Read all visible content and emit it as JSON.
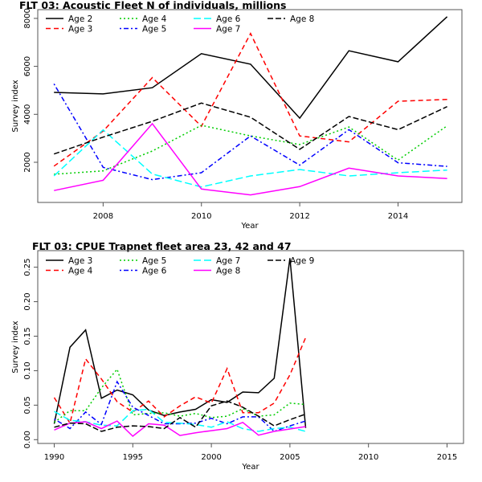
{
  "chart_data": [
    {
      "type": "line",
      "title": "FLT 03: Acoustic Fleet   N of individuals, millions",
      "xlabel": "Year",
      "ylabel": "Survey index",
      "xlim": [
        2006.67,
        2015.3
      ],
      "ylim": [
        325,
        8365
      ],
      "xticks": [
        2008,
        2010,
        2012,
        2014
      ],
      "xtick_labels": [
        "2008",
        "2010",
        "2012",
        "2014"
      ],
      "yticks": [
        2000,
        4000,
        6000,
        8000
      ],
      "ytick_labels": [
        "2000",
        "4000",
        "6000",
        "8000"
      ],
      "grid": false,
      "legend_position": "top-left",
      "legend_columns": 4,
      "x": [
        2007,
        2008,
        2009,
        2010,
        2011,
        2012,
        2013,
        2014,
        2015
      ],
      "series": [
        {
          "name": "Age 2",
          "color": "#000000",
          "style": "solid",
          "values": [
            4915,
            4850,
            5110,
            6530,
            6090,
            3840,
            6650,
            6190,
            8070
          ]
        },
        {
          "name": "Age 3",
          "color": "#ff0000",
          "style": "dashed",
          "values": [
            1840,
            3300,
            5530,
            3500,
            7370,
            3100,
            2850,
            4545,
            4620
          ]
        },
        {
          "name": "Age 4",
          "color": "#00cd00",
          "style": "dotted",
          "values": [
            1500,
            1640,
            2470,
            3540,
            3100,
            2740,
            3470,
            2090,
            3520
          ]
        },
        {
          "name": "Age 5",
          "color": "#0000ff",
          "style": "dotdash",
          "values": [
            5270,
            1790,
            1275,
            1565,
            3100,
            1880,
            3360,
            1980,
            1830
          ]
        },
        {
          "name": "Age 6",
          "color": "#00ffff",
          "style": "longdash",
          "values": [
            1430,
            3350,
            1510,
            970,
            1430,
            1700,
            1430,
            1565,
            1675
          ]
        },
        {
          "name": "Age 7",
          "color": "#ff00ff",
          "style": "solid",
          "values": [
            820,
            1250,
            3610,
            885,
            640,
            985,
            1755,
            1430,
            1320
          ]
        },
        {
          "name": "Age 8",
          "color": "#000000",
          "style": "twodash",
          "values": [
            2345,
            3050,
            3710,
            4470,
            3880,
            2540,
            3910,
            3360,
            4320
          ]
        }
      ]
    },
    {
      "type": "line",
      "title": "FLT 03: CPUE Trapnet fleet area 23, 42 and 47",
      "xlabel": "Year",
      "ylabel": "Survey index",
      "xlim": [
        1988.95,
        2016.05
      ],
      "ylim": [
        -0.0055,
        0.274
      ],
      "xticks": [
        1990,
        1995,
        2000,
        2005,
        2010,
        2015
      ],
      "xtick_labels": [
        "1990",
        "1995",
        "2000",
        "2005",
        "2010",
        "2015"
      ],
      "yticks": [
        0.0,
        0.05,
        0.1,
        0.15,
        0.2,
        0.25
      ],
      "ytick_labels": [
        "0.00",
        "0.05",
        "0.10",
        "0.15",
        "0.20",
        "0.25"
      ],
      "grid": false,
      "legend_position": "top-left",
      "legend_columns": 4,
      "x": [
        1990,
        1991,
        1992,
        1993,
        1994,
        1995,
        1996,
        1997,
        1998,
        1999,
        2000,
        2001,
        2002,
        2003,
        2004,
        2005,
        2006
      ],
      "series": [
        {
          "name": "Age 3",
          "color": "#000000",
          "style": "solid",
          "values": [
            0.023,
            0.134,
            0.159,
            0.06,
            0.072,
            0.065,
            0.043,
            0.035,
            0.04,
            0.044,
            0.058,
            0.054,
            0.069,
            0.068,
            0.089,
            0.263,
            0.017
          ]
        },
        {
          "name": "Age 4",
          "color": "#ff0000",
          "style": "dashed",
          "values": [
            0.061,
            0.024,
            0.117,
            0.088,
            0.055,
            0.04,
            0.056,
            0.033,
            0.049,
            0.062,
            0.053,
            0.103,
            0.039,
            0.039,
            0.053,
            0.094,
            0.148
          ]
        },
        {
          "name": "Age 5",
          "color": "#00cd00",
          "style": "dotted",
          "values": [
            0.025,
            0.042,
            0.042,
            0.075,
            0.102,
            0.036,
            0.038,
            0.039,
            0.034,
            0.038,
            0.032,
            0.034,
            0.045,
            0.034,
            0.036,
            0.053,
            0.051
          ]
        },
        {
          "name": "Age 6",
          "color": "#0000ff",
          "style": "dotdash",
          "values": [
            0.03,
            0.016,
            0.04,
            0.022,
            0.084,
            0.047,
            0.035,
            0.023,
            0.023,
            0.024,
            0.031,
            0.023,
            0.033,
            0.033,
            0.012,
            0.02,
            0.027
          ]
        },
        {
          "name": "Age 7",
          "color": "#00ffff",
          "style": "longdash",
          "values": [
            0.041,
            0.028,
            0.026,
            0.021,
            0.02,
            0.042,
            0.044,
            0.025,
            0.024,
            0.022,
            0.018,
            0.026,
            0.016,
            0.012,
            0.016,
            0.018,
            0.012
          ]
        },
        {
          "name": "Age 8",
          "color": "#ff00ff",
          "style": "solid",
          "values": [
            0.014,
            0.024,
            0.026,
            0.016,
            0.027,
            0.005,
            0.023,
            0.021,
            0.006,
            0.01,
            0.013,
            0.016,
            0.025,
            0.0065,
            0.012,
            0.0155,
            0.019
          ]
        },
        {
          "name": "Age 9",
          "color": "#000000",
          "style": "twodash",
          "values": [
            0.018,
            0.024,
            0.023,
            0.012,
            0.018,
            0.02,
            0.019,
            0.016,
            0.032,
            0.018,
            0.049,
            0.056,
            0.047,
            0.034,
            0.02,
            0.029,
            0.037
          ]
        }
      ]
    }
  ]
}
